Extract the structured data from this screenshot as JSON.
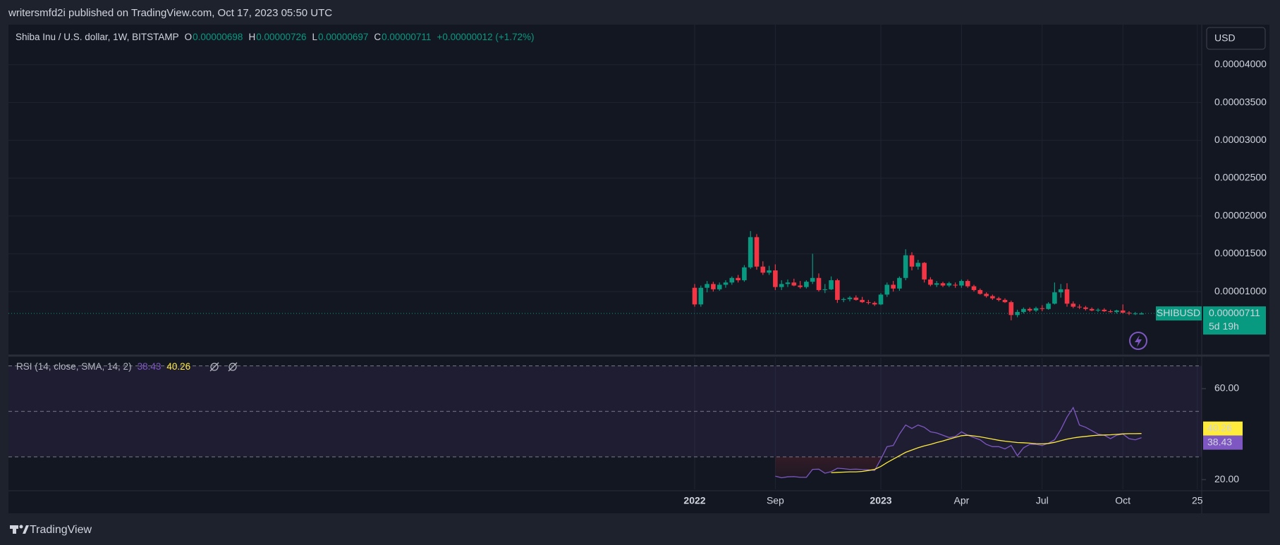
{
  "header": {
    "publisher": "writersmfd2i published on TradingView.com, Oct 17, 2023 05:50 UTC",
    "symbol": "Shiba Inu / U.S. dollar, 1W, BITSTAMP",
    "ohlc": [
      {
        "key": "O",
        "value": "0.00000698"
      },
      {
        "key": "H",
        "value": "0.00000726"
      },
      {
        "key": "L",
        "value": "0.00000697"
      },
      {
        "key": "C",
        "value": "0.00000711"
      }
    ],
    "change": "+0.00000012 (+1.72%)"
  },
  "currency": "USD",
  "footer": "TradingView",
  "chart_data": [
    {
      "type": "candlestick",
      "categories": [
        "2022",
        null,
        null,
        null,
        null,
        null,
        null,
        null,
        null,
        null,
        null,
        null,
        null,
        "Sep",
        null,
        null,
        null,
        null,
        null,
        null,
        null,
        null,
        null,
        null,
        null,
        null,
        null,
        null,
        null,
        null,
        "2023",
        null,
        null,
        null,
        null,
        null,
        null,
        null,
        null,
        null,
        null,
        null,
        null,
        "Apr",
        null,
        null,
        null,
        null,
        null,
        null,
        null,
        null,
        null,
        null,
        null,
        null,
        "Jul",
        null,
        null,
        null,
        null,
        null,
        null,
        null,
        null,
        null,
        null,
        null,
        null,
        "Oct",
        null,
        null,
        null,
        null,
        null,
        null,
        null,
        null,
        null,
        null,
        null,
        "25"
      ],
      "series": [
        {
          "name": "SHIBUSD",
          "up_color": "#089981",
          "down_color": "#f23645",
          "open": [
            1.05e-05,
            8.3e-06,
            1.05e-05,
            1.1e-05,
            1.03e-05,
            1.09e-05,
            1.12e-05,
            1.18e-05,
            1.15e-05,
            1.32e-05,
            1.72e-05,
            1.33e-05,
            1.25e-05,
            1.28e-05,
            1.06e-05,
            1.1e-05,
            1.12e-05,
            1.08e-05,
            1.06e-05,
            1.13e-05,
            1.18e-05,
            1.02e-05,
            1.03e-05,
            1.15e-05,
            8.9e-06,
            9e-06,
            9.2e-06,
            8.9e-06,
            8.6e-06,
            8.5e-06,
            8.3e-06,
            9.6e-06,
            1.09e-05,
            1.04e-05,
            1.18e-05,
            1.48e-05,
            1.33e-05,
            1.38e-05,
            1.16e-05,
            1.09e-05,
            1.11e-05,
            1.08e-05,
            1.09e-05,
            1.08e-05,
            1.14e-05,
            1.07e-05,
            1.02e-05,
            9.7e-06,
            9.4e-06,
            9.1e-06,
            8.9e-06,
            8.6e-06,
            6.9e-06,
            7.3e-06,
            7.7e-06,
            7.5e-06,
            7.8e-06,
            7.7e-06,
            8.4e-06,
            9.9e-06,
            1.03e-05,
            8.4e-06,
            8e-06,
            7.9e-06,
            7.7e-06,
            7.5e-06,
            7.6e-06,
            7.4e-06,
            7.3e-06,
            7.5e-06,
            7.2e-06,
            7.1e-06,
            6.98e-06,
            null,
            null,
            null,
            null,
            null,
            null,
            null,
            null,
            null
          ],
          "high": [
            1.1e-05,
            1.08e-05,
            1.14e-05,
            1.13e-05,
            1.12e-05,
            1.15e-05,
            1.2e-05,
            1.22e-05,
            1.35e-05,
            1.8e-05,
            1.76e-05,
            1.4e-05,
            1.34e-05,
            1.36e-05,
            1.15e-05,
            1.16e-05,
            1.17e-05,
            1.14e-05,
            1.15e-05,
            1.5e-05,
            1.24e-05,
            1.1e-05,
            1.2e-05,
            1.17e-05,
            9.2e-06,
            9.4e-06,
            9.5e-06,
            9.3e-06,
            8.9e-06,
            8.7e-06,
            9.8e-06,
            1.12e-05,
            1.14e-05,
            1.2e-05,
            1.56e-05,
            1.52e-05,
            1.42e-05,
            1.39e-05,
            1.19e-05,
            1.14e-05,
            1.13e-05,
            1.13e-05,
            1.12e-05,
            1.16e-05,
            1.16e-05,
            1.09e-05,
            1.04e-05,
            9.9e-06,
            9.6e-06,
            9.3e-06,
            9.1e-06,
            8.8e-06,
            7.6e-06,
            7.9e-06,
            7.9e-06,
            8e-06,
            8.2e-06,
            8.6e-06,
            1.12e-05,
            1.1e-05,
            1.11e-05,
            8.7e-06,
            8.3e-06,
            8.1e-06,
            7.9e-06,
            7.8e-06,
            7.8e-06,
            7.6e-06,
            7.6e-06,
            8.3e-06,
            7.4e-06,
            7.3e-06,
            7.26e-06,
            null,
            null,
            null,
            null,
            null,
            null,
            null,
            null,
            null
          ],
          "low": [
            8e-06,
            8e-06,
            9.9e-06,
            1e-05,
            1.01e-05,
            1.05e-05,
            1.09e-05,
            1.12e-05,
            1.13e-05,
            1.3e-05,
            1.29e-05,
            1.22e-05,
            1.22e-05,
            1.02e-05,
            1.02e-05,
            1.06e-05,
            1.07e-05,
            1.04e-05,
            1.04e-05,
            1.1e-05,
            1e-05,
            9.8e-06,
            1.02e-05,
            8.5e-06,
            8.6e-06,
            8.7e-06,
            8.8e-06,
            8.5e-06,
            8.3e-06,
            8.1e-06,
            8.2e-06,
            9.3e-06,
            1e-05,
            1.01e-05,
            1.15e-05,
            1.28e-05,
            1.29e-05,
            1.12e-05,
            1.07e-05,
            1.06e-05,
            1.06e-05,
            1.06e-05,
            1.05e-05,
            1.05e-05,
            1.05e-05,
            1e-05,
            9.6e-06,
            9.2e-06,
            8.9e-06,
            8.7e-06,
            8.5e-06,
            6.2e-06,
            6.6e-06,
            7.1e-06,
            7.3e-06,
            7.3e-06,
            7.4e-06,
            7.6e-06,
            8.3e-06,
            9.2e-06,
            8e-06,
            7.8e-06,
            7.7e-06,
            7.5e-06,
            7.4e-06,
            7.3e-06,
            7.3e-06,
            7.2e-06,
            7.1e-06,
            7.1e-06,
            6.9e-06,
            6.9e-06,
            6.97e-06,
            null,
            null,
            null,
            null,
            null,
            null,
            null,
            null,
            null
          ],
          "close": [
            8.3e-06,
            1.05e-05,
            1.1e-05,
            1.03e-05,
            1.09e-05,
            1.12e-05,
            1.18e-05,
            1.15e-05,
            1.32e-05,
            1.72e-05,
            1.33e-05,
            1.25e-05,
            1.28e-05,
            1.06e-05,
            1.1e-05,
            1.12e-05,
            1.08e-05,
            1.06e-05,
            1.13e-05,
            1.18e-05,
            1.02e-05,
            1.03e-05,
            1.15e-05,
            8.9e-06,
            9e-06,
            9.2e-06,
            8.9e-06,
            8.6e-06,
            8.5e-06,
            8.3e-06,
            9.6e-06,
            1.09e-05,
            1.04e-05,
            1.18e-05,
            1.48e-05,
            1.33e-05,
            1.38e-05,
            1.16e-05,
            1.09e-05,
            1.11e-05,
            1.08e-05,
            1.11e-05,
            1.08e-05,
            1.14e-05,
            1.07e-05,
            1.02e-05,
            9.7e-06,
            9.4e-06,
            9.1e-06,
            8.9e-06,
            8.6e-06,
            6.9e-06,
            7.3e-06,
            7.7e-06,
            7.5e-06,
            7.8e-06,
            7.7e-06,
            8.4e-06,
            9.9e-06,
            1.03e-05,
            8.4e-06,
            8e-06,
            7.9e-06,
            7.7e-06,
            7.5e-06,
            7.6e-06,
            7.4e-06,
            7.3e-06,
            7.5e-06,
            7.2e-06,
            7.1e-06,
            7.1e-06,
            7.11e-06,
            null,
            null,
            null,
            null,
            null,
            null,
            null,
            null,
            null
          ]
        }
      ],
      "last_price": {
        "value": 7.11e-06,
        "label": "0.00000711",
        "countdown": "5d 19h",
        "color": "#089981"
      },
      "ylim": [
        2e-06,
        4.53e-05
      ],
      "yticks": [
        {
          "value": 4e-05,
          "label": "0.00004000"
        },
        {
          "value": 3.5e-05,
          "label": "0.00003500"
        },
        {
          "value": 3e-05,
          "label": "0.00003000"
        },
        {
          "value": 2.5e-05,
          "label": "0.00002500"
        },
        {
          "value": 2e-05,
          "label": "0.00002000"
        },
        {
          "value": 1.5e-05,
          "label": "0.00001500"
        },
        {
          "value": 1e-05,
          "label": "0.00001000"
        }
      ],
      "grid": true
    },
    {
      "type": "line",
      "title": "RSI (14, close, SMA, 14, 2)",
      "series": [
        {
          "color": "#7e57c2",
          "value_label": "38.43",
          "values": [
            null,
            null,
            null,
            null,
            null,
            null,
            null,
            null,
            null,
            null,
            null,
            null,
            null,
            21.5,
            20.8,
            21.2,
            21.3,
            21.0,
            21.0,
            24.5,
            24.6,
            22.8,
            23.5,
            25.0,
            24.8,
            24.5,
            24.6,
            24.4,
            24.3,
            24.0,
            29.0,
            34.5,
            35.0,
            40.0,
            44.0,
            42.5,
            44.0,
            43.0,
            41.0,
            40.5,
            39.5,
            38.5,
            39.0,
            41.0,
            39.5,
            38.5,
            37.5,
            35.5,
            34.5,
            34.5,
            33.5,
            35.0,
            30.5,
            34.0,
            35.5,
            35.5,
            35.0,
            36.0,
            37.5,
            42.0,
            47.5,
            51.7,
            44.0,
            43.0,
            41.5,
            40.0,
            39.5,
            38.0,
            39.5,
            40.0,
            38.0,
            37.5,
            38.43,
            null,
            null,
            null,
            null,
            null,
            null,
            null,
            null,
            null
          ]
        },
        {
          "color": "#ffeb3b",
          "value_label": "40.26",
          "values": [
            null,
            null,
            null,
            null,
            null,
            null,
            null,
            null,
            null,
            null,
            null,
            null,
            null,
            null,
            null,
            null,
            null,
            null,
            null,
            null,
            null,
            null,
            23.0,
            23.2,
            23.3,
            23.4,
            23.4,
            23.6,
            24.0,
            24.5,
            25.8,
            27.5,
            29.0,
            30.5,
            32.0,
            33.0,
            34.0,
            34.8,
            35.5,
            36.3,
            37.0,
            37.8,
            38.6,
            39.3,
            39.5,
            39.2,
            38.8,
            38.3,
            37.8,
            37.3,
            36.9,
            36.6,
            36.3,
            36.2,
            36.0,
            35.8,
            35.7,
            35.9,
            36.4,
            37.1,
            37.8,
            38.3,
            38.7,
            39.0,
            39.3,
            39.5,
            39.6,
            39.7,
            39.9,
            40.1,
            40.2,
            40.2,
            40.26,
            null,
            null,
            null,
            null,
            null,
            null,
            null,
            null,
            null
          ]
        }
      ],
      "hlines": [
        70,
        50,
        30
      ],
      "ylim": [
        15.7,
        73.3
      ],
      "yticks": [
        {
          "value": 60,
          "label": "60.00"
        },
        {
          "value": 20,
          "label": "20.00"
        }
      ]
    }
  ]
}
